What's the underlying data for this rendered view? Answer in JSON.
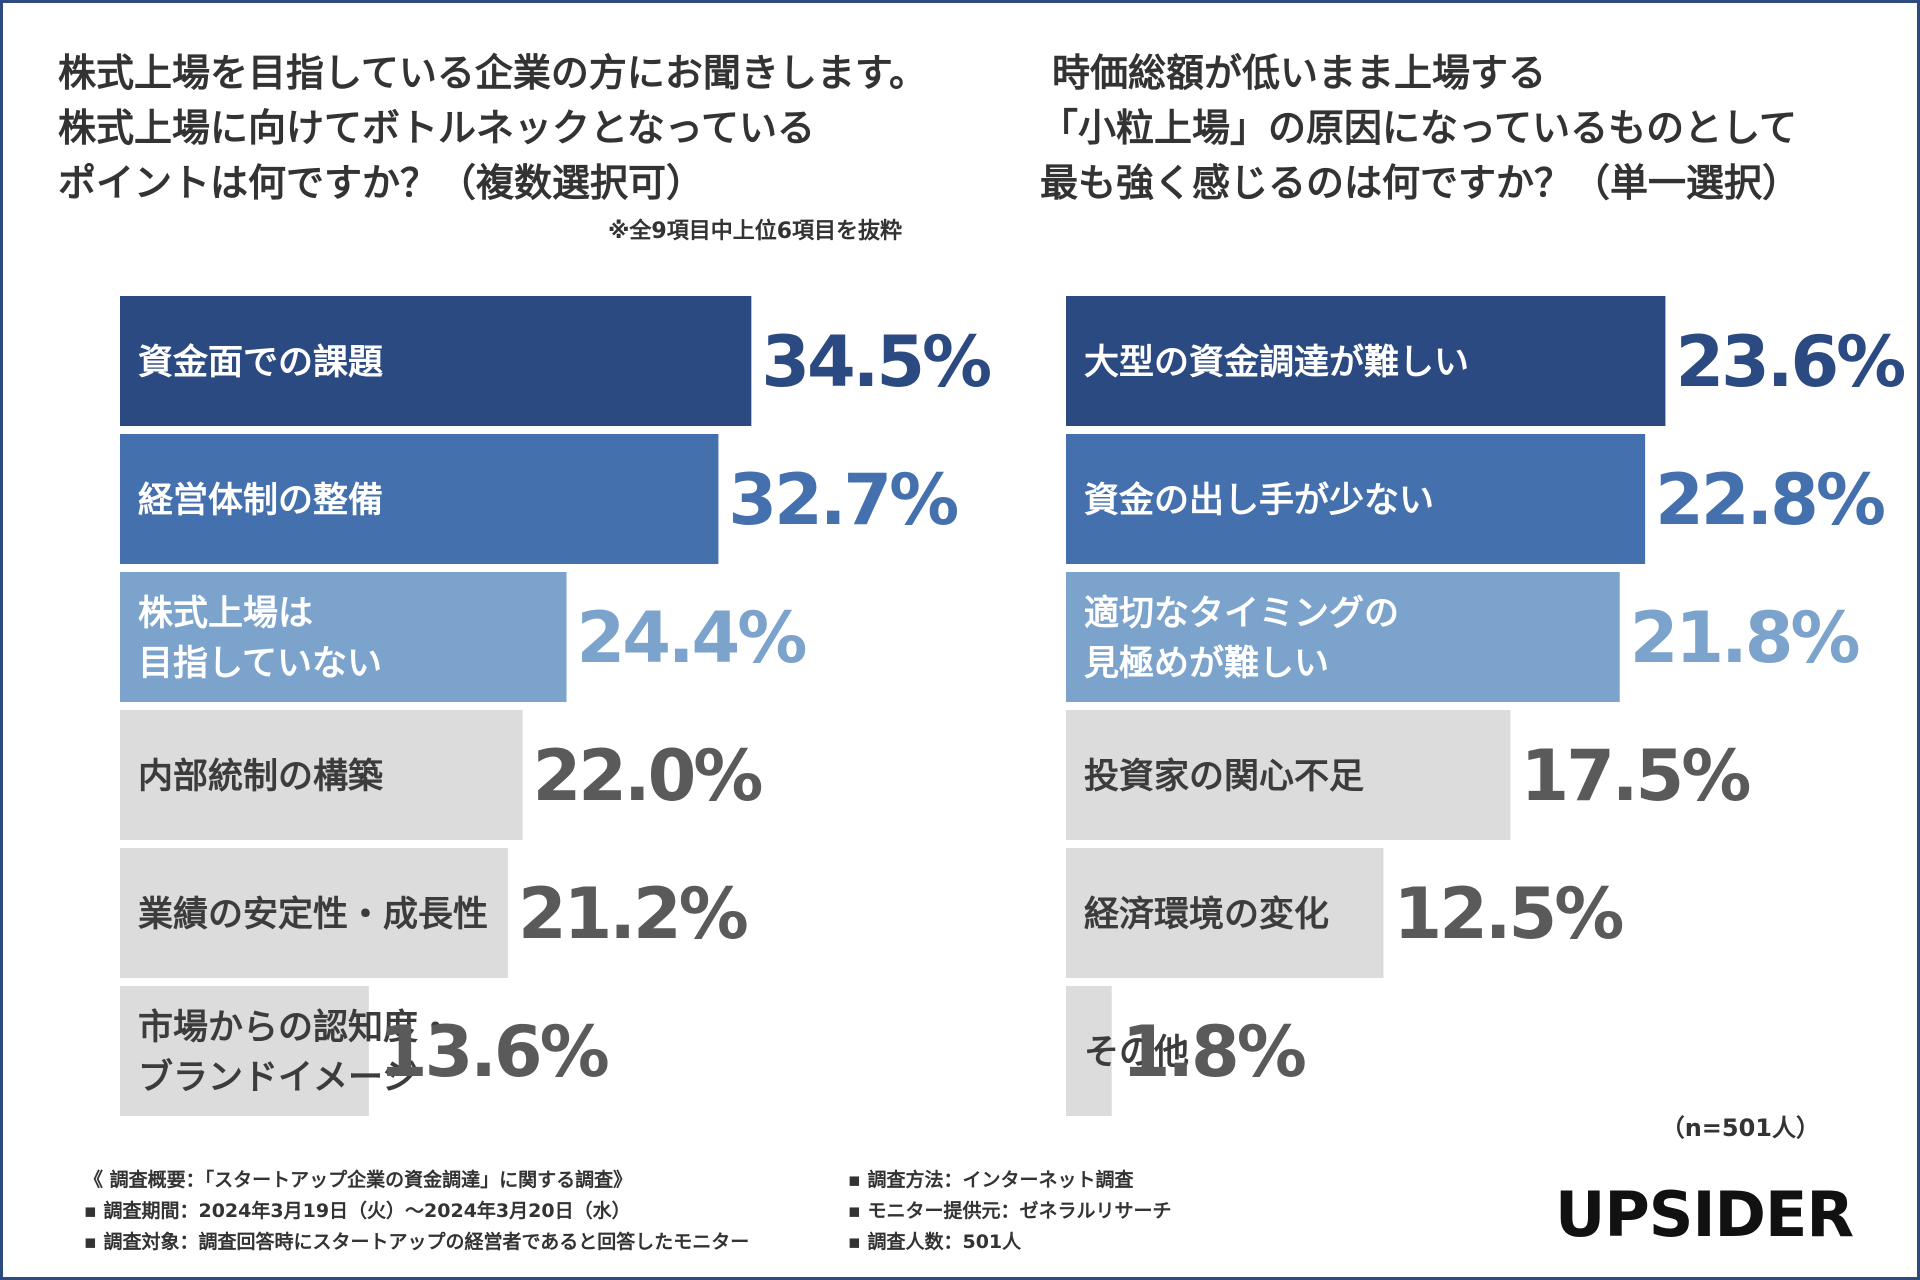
{
  "left_title": [
    "株式上場を目指している企業の方にお聞きします。",
    "株式上場に向けてボトルネックとなっている",
    "ポイントは何ですか？（複数選択可）"
  ],
  "left_note": "※全9項目中上位6項目を抜粋",
  "right_title": [
    "時価総額が低いまま上場する",
    "「小粒上場」の原因になっているものとして",
    "最も強く感じるのは何ですか？（単一選択）"
  ],
  "sample_size": "（n=501人）",
  "footer_left": [
    "《 調査概要：「スタートアップ企業の資金調達」に関する調査》",
    "▪ 調査期間：2024年3月19日（火）～2024年3月20日（水）",
    "▪ 調査対象：調査回答時にスタートアップの経営者であると回答したモニター"
  ],
  "footer_right": [
    "▪ 調査方法：インターネット調査",
    "▪ モニター提供元：ゼネラルリサーチ",
    "▪ 調査人数：501人"
  ],
  "logo": "UPSIDER",
  "chart_data": [
    {
      "type": "bar",
      "orientation": "horizontal",
      "title": "株式上場に向けてボトルネックとなっているポイント（複数選択可）",
      "categories": [
        [
          "資金面での課題"
        ],
        [
          "経営体制の整備"
        ],
        [
          "株式上場は",
          "目指していない"
        ],
        [
          "内部統制の構築"
        ],
        [
          "業績の安定性・成長性"
        ],
        [
          "市場からの認知度・",
          "ブランドイメージ"
        ]
      ],
      "values": [
        34.5,
        32.7,
        24.4,
        22.0,
        21.2,
        13.6
      ],
      "value_labels": [
        "34.5%",
        "32.7%",
        "24.4%",
        "22.0%",
        "21.2%",
        "13.6%"
      ],
      "unit": "%",
      "bar_colors": [
        "#2c4a82",
        "#4470ad",
        "#7ba3cc",
        "#dcdcdc",
        "#dcdcdc",
        "#dcdcdc"
      ],
      "value_colors": [
        "#2c4a82",
        "#4470ad",
        "#7ba3cc",
        "#5a5a5a",
        "#5a5a5a",
        "#5a5a5a"
      ],
      "label_colors": [
        "#ffffff",
        "#ffffff",
        "#ffffff",
        "#3c3c3c",
        "#3c3c3c",
        "#3c3c3c"
      ]
    },
    {
      "type": "bar",
      "orientation": "horizontal",
      "title": "「小粒上場」の原因として最も強く感じるもの（単一選択）",
      "categories": [
        [
          "大型の資金調達が難しい"
        ],
        [
          "資金の出し手が少ない"
        ],
        [
          "適切なタイミングの",
          "見極めが難しい"
        ],
        [
          "投資家の関心不足"
        ],
        [
          "経済環境の変化"
        ],
        [
          "その他"
        ]
      ],
      "values": [
        23.6,
        22.8,
        21.8,
        17.5,
        12.5,
        1.8
      ],
      "value_labels": [
        "23.6%",
        "22.8%",
        "21.8%",
        "17.5%",
        "12.5%",
        "1.8%"
      ],
      "unit": "%",
      "bar_colors": [
        "#2c4a82",
        "#4470ad",
        "#7ba3cc",
        "#dcdcdc",
        "#dcdcdc",
        "#dcdcdc"
      ],
      "value_colors": [
        "#2c4a82",
        "#4470ad",
        "#7ba3cc",
        "#5a5a5a",
        "#5a5a5a",
        "#5a5a5a"
      ],
      "label_colors": [
        "#ffffff",
        "#ffffff",
        "#ffffff",
        "#3c3c3c",
        "#3c3c3c",
        "#3c3c3c"
      ]
    }
  ]
}
